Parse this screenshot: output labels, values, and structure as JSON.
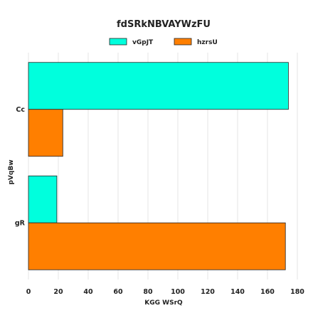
{
  "chart_data": {
    "type": "bar",
    "orientation": "horizontal",
    "title": "fdSRkNBVAYWzFU",
    "xlabel": "KGG WSrQ",
    "ylabel": "pVqBw",
    "categories": [
      "Cc",
      "gR"
    ],
    "category_bold": [
      true,
      false
    ],
    "series": [
      {
        "name": "vGpJT",
        "color": "#00ffdd",
        "values": [
          174,
          19
        ]
      },
      {
        "name": "hzrsU",
        "color": "#ff7f00",
        "values": [
          23,
          172
        ]
      }
    ],
    "xlim": [
      0,
      180
    ],
    "xticks": [
      0,
      20,
      40,
      60,
      80,
      100,
      120,
      140,
      160,
      180
    ],
    "grid": true,
    "legend_position": "top-center"
  }
}
